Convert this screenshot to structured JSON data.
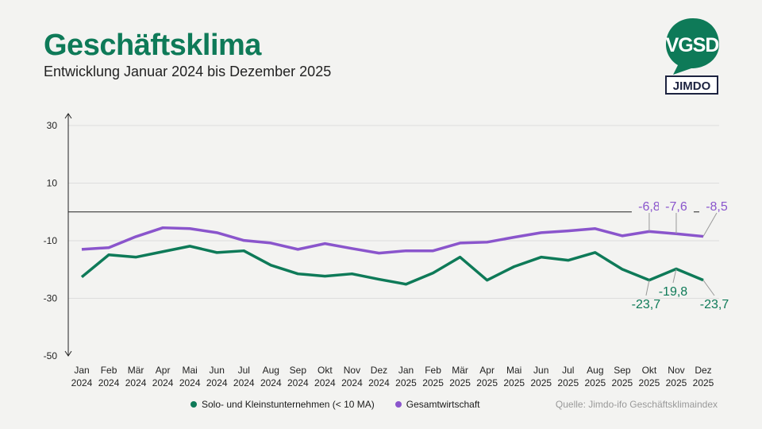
{
  "header": {
    "title": "Geschäftsklima",
    "subtitle": "Entwicklung Januar 2024 bis Dezember 2025"
  },
  "logos": {
    "vgsd": "VGSD",
    "jimdo": "JIMDO"
  },
  "source": "Quelle: Jimdo-ifo Geschäftsklimaindex",
  "chart_data": {
    "type": "line",
    "title": "Geschäftsklima",
    "ylim": [
      -50,
      30
    ],
    "yticks": [
      30,
      10,
      -10,
      -30,
      -50
    ],
    "grid": true,
    "legend_placement": "bottom",
    "categories": [
      [
        "Jan",
        "2024"
      ],
      [
        "Feb",
        "2024"
      ],
      [
        "Mär",
        "2024"
      ],
      [
        "Apr",
        "2024"
      ],
      [
        "Mai",
        "2024"
      ],
      [
        "Jun",
        "2024"
      ],
      [
        "Jul",
        "2024"
      ],
      [
        "Aug",
        "2024"
      ],
      [
        "Sep",
        "2024"
      ],
      [
        "Okt",
        "2024"
      ],
      [
        "Nov",
        "2024"
      ],
      [
        "Dez",
        "2024"
      ],
      [
        "Jan",
        "2025"
      ],
      [
        "Feb",
        "2025"
      ],
      [
        "Mär",
        "2025"
      ],
      [
        "Apr",
        "2025"
      ],
      [
        "Mai",
        "2025"
      ],
      [
        "Jun",
        "2025"
      ],
      [
        "Jul",
        "2025"
      ],
      [
        "Aug",
        "2025"
      ],
      [
        "Sep",
        "2025"
      ],
      [
        "Okt",
        "2025"
      ],
      [
        "Nov",
        "2025"
      ],
      [
        "Dez",
        "2025"
      ]
    ],
    "series": [
      {
        "name": "Solo- und Kleinstunternehmen (< 10 MA)",
        "color": "#0e7a58",
        "values": [
          -22.6,
          -14.9,
          -15.7,
          -13.8,
          -11.9,
          -14.1,
          -13.5,
          -18.5,
          -21.5,
          -22.3,
          -21.5,
          -23.4,
          -25.1,
          -21.2,
          -15.7,
          -23.7,
          -19.0,
          -15.7,
          -16.8,
          -14.1,
          -19.9,
          -23.7,
          -19.8,
          -23.7
        ],
        "labels": [
          {
            "index": 21,
            "text": "-23,7"
          },
          {
            "index": 22,
            "text": "-19,8"
          },
          {
            "index": 23,
            "text": "-23,7"
          }
        ]
      },
      {
        "name": "Gesamtwirtschaft",
        "color": "#8a55cc",
        "values": [
          -13.0,
          -12.4,
          -8.6,
          -5.5,
          -5.8,
          -7.2,
          -9.9,
          -10.8,
          -13.0,
          -11.0,
          -12.7,
          -14.3,
          -13.5,
          -13.5,
          -10.8,
          -10.5,
          -8.8,
          -7.2,
          -6.6,
          -5.8,
          -8.3,
          -6.8,
          -7.6,
          -8.5
        ],
        "labels": [
          {
            "index": 21,
            "text": "-6,8"
          },
          {
            "index": 22,
            "text": "-7,6"
          },
          {
            "index": 23,
            "text": "-8,5"
          }
        ]
      }
    ]
  }
}
